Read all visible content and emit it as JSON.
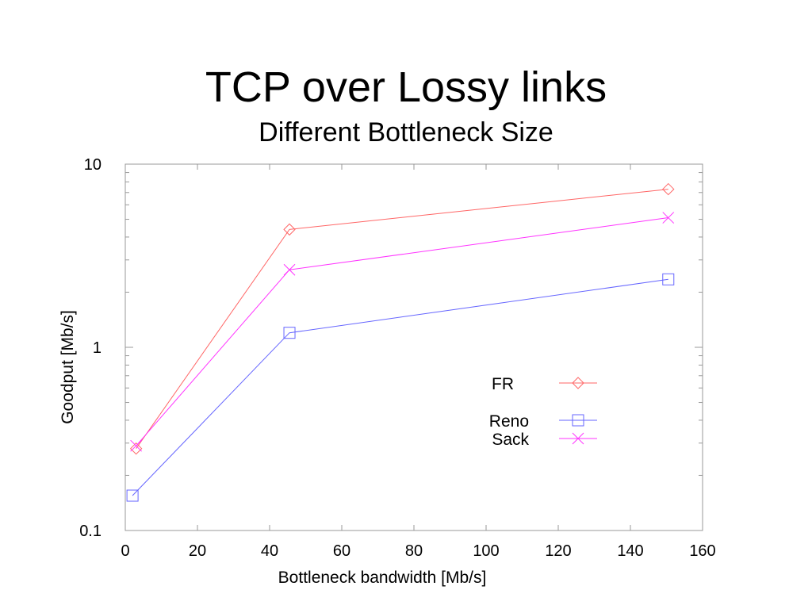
{
  "page": {
    "title": "TCP over Lossy links",
    "subtitle": "Different Bottleneck Size"
  },
  "chart_data": {
    "type": "line",
    "xlabel": "Bottleneck bandwidth [Mb/s]",
    "ylabel": "Goodput [Mb/s]",
    "xlim": [
      0,
      160
    ],
    "ylim": [
      0.1,
      10
    ],
    "yscale": "log",
    "xticks": [
      "0",
      "20",
      "40",
      "60",
      "80",
      "100",
      "120",
      "140",
      "160"
    ],
    "yticks": [
      "0.1",
      "1",
      "10"
    ],
    "legend_position": "center-right",
    "series": [
      {
        "name": "FR",
        "color": "#ff6666",
        "marker": "diamond",
        "points": [
          [
            3,
            0.28
          ],
          [
            45.5,
            4.4
          ],
          [
            150.5,
            7.3
          ]
        ]
      },
      {
        "name": "Reno",
        "color": "#6666ff",
        "marker": "square",
        "points": [
          [
            2,
            0.155
          ],
          [
            45.5,
            1.2
          ],
          [
            150.5,
            2.35
          ]
        ]
      },
      {
        "name": "Sack",
        "color": "#ff33ff",
        "marker": "cross",
        "points": [
          [
            3,
            0.29
          ],
          [
            45.5,
            2.65
          ],
          [
            150.5,
            5.1
          ]
        ]
      }
    ]
  }
}
